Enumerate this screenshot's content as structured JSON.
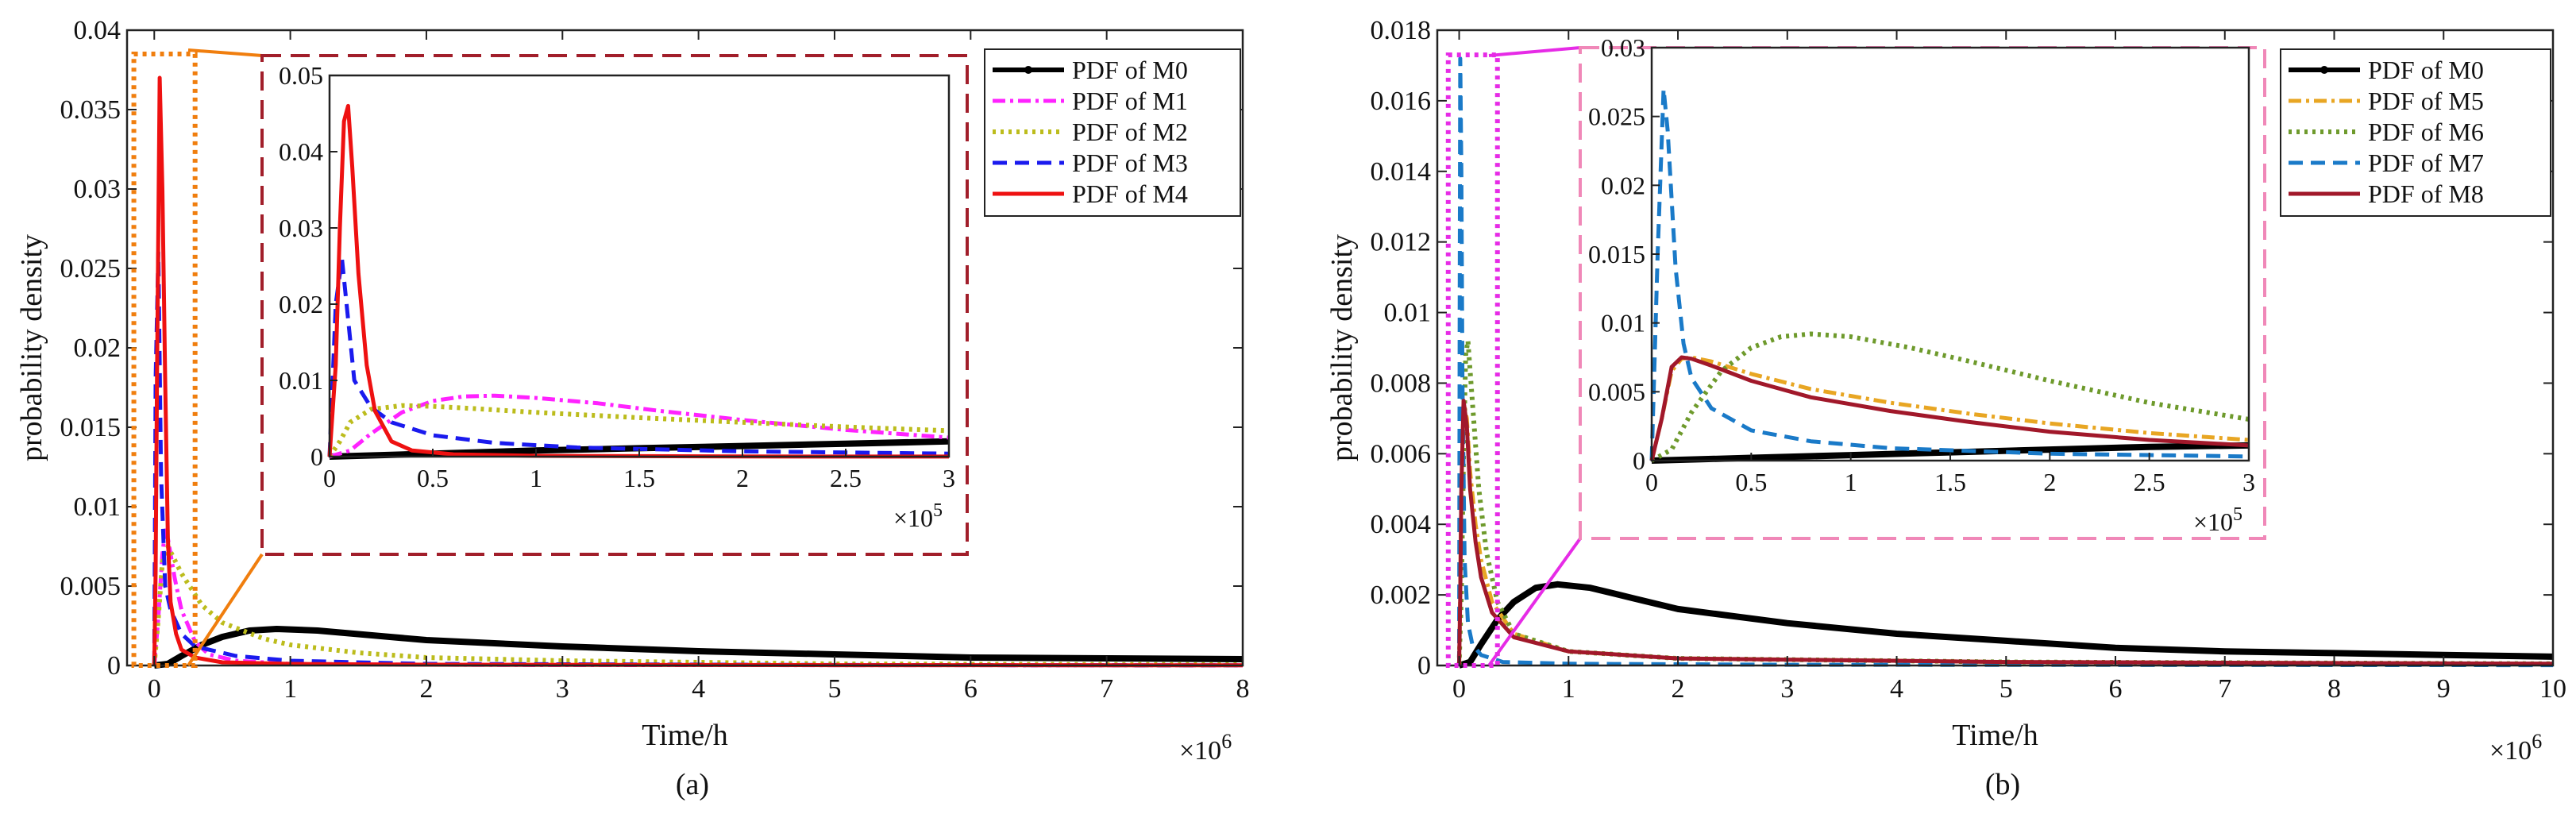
{
  "figure": {
    "panels": [
      {
        "caption": "(a)",
        "exponent_label": "×10",
        "exponent_power": "6",
        "inset_exponent_label": "×10",
        "inset_exponent_power": "5"
      },
      {
        "caption": "(b)",
        "exponent_label": "×10",
        "exponent_power": "6",
        "inset_exponent_label": "×10",
        "inset_exponent_power": "5"
      }
    ]
  },
  "chart_data": [
    {
      "type": "line",
      "panel": "a",
      "title": "",
      "xlabel": "Time/h",
      "ylabel": "probability density",
      "x_multiplier": "×10^6",
      "xlim": [
        -0.2,
        8
      ],
      "ylim": [
        0,
        0.04
      ],
      "xticks": [
        0,
        1,
        2,
        3,
        4,
        5,
        6,
        7,
        8
      ],
      "xtick_labels": [
        "0",
        "1",
        "2",
        "3",
        "4",
        "5",
        "6",
        "7",
        "8"
      ],
      "yticks": [
        0,
        0.005,
        0.01,
        0.015,
        0.02,
        0.025,
        0.03,
        0.035,
        0.04
      ],
      "ytick_labels": [
        "0",
        "0.005",
        "0.01",
        "0.015",
        "0.02",
        "0.025",
        "0.03",
        "0.035",
        "0.04"
      ],
      "legend": {
        "position": "top-right",
        "entries": [
          "PDF of M0",
          "PDF of M1",
          "PDF of M2",
          "PDF of M3",
          "PDF of M4"
        ]
      },
      "series": [
        {
          "name": "PDF of M0",
          "color": "#000000",
          "dash": "solid",
          "width": 8,
          "x": [
            0,
            0.1,
            0.2,
            0.35,
            0.5,
            0.7,
            0.9,
            1.2,
            1.6,
            2,
            3,
            4,
            5,
            6,
            7,
            8
          ],
          "y": [
            0,
            0.0001,
            0.0006,
            0.0013,
            0.0018,
            0.0022,
            0.0023,
            0.0022,
            0.0019,
            0.0016,
            0.0012,
            0.0009,
            0.0007,
            0.0005,
            0.00045,
            0.0004
          ]
        },
        {
          "name": "PDF of M1",
          "color": "#ff22ff",
          "dash": "16,6,4,6",
          "width": 5,
          "x": [
            0,
            0.03,
            0.06,
            0.08,
            0.1,
            0.15,
            0.2,
            0.3,
            0.4,
            0.6,
            1,
            2,
            3,
            5,
            8
          ],
          "y": [
            0,
            0.003,
            0.007,
            0.0085,
            0.008,
            0.0055,
            0.0035,
            0.0015,
            0.0007,
            0.0003,
            0.0001,
            5e-05,
            3e-05,
            2e-05,
            1e-05
          ]
        },
        {
          "name": "PDF of M2",
          "color": "#bcbc1c",
          "dash": "4,6",
          "width": 6,
          "x": [
            0,
            0.03,
            0.06,
            0.1,
            0.2,
            0.35,
            0.5,
            0.8,
            1,
            1.5,
            2,
            3,
            5,
            8
          ],
          "y": [
            0,
            0.003,
            0.0065,
            0.0075,
            0.0058,
            0.0038,
            0.0027,
            0.0017,
            0.0013,
            0.0008,
            0.0005,
            0.0003,
            0.0001,
            5e-05
          ]
        },
        {
          "name": "PDF of M3",
          "color": "#1a1aee",
          "dash": "18,10",
          "width": 5,
          "x": [
            0,
            0.01,
            0.03,
            0.05,
            0.08,
            0.12,
            0.2,
            0.3,
            0.6,
            1,
            2,
            5,
            8
          ],
          "y": [
            0,
            0.018,
            0.026,
            0.012,
            0.005,
            0.0035,
            0.002,
            0.0012,
            0.0006,
            0.0003,
            0.0001,
            3e-05,
            1e-05
          ]
        },
        {
          "name": "PDF of M4",
          "color": "#ee1111",
          "dash": "solid",
          "width": 5,
          "x": [
            0,
            0.01,
            0.02,
            0.04,
            0.06,
            0.08,
            0.1,
            0.12,
            0.16,
            0.2,
            0.3,
            0.5,
            1,
            2,
            5,
            8
          ],
          "y": [
            0,
            0.006,
            0.018,
            0.037,
            0.03,
            0.018,
            0.008,
            0.004,
            0.002,
            0.001,
            0.0005,
            0.0002,
            0.0001,
            5e-05,
            2e-05,
            1e-05
          ]
        }
      ],
      "zoom_box": {
        "x": [
          -0.15,
          0.3
        ],
        "y": [
          0,
          0.0385
        ]
      },
      "inset": {
        "xlim": [
          0,
          3
        ],
        "ylim": [
          0,
          0.05
        ],
        "x_multiplier": "×10^5",
        "xticks": [
          0,
          0.5,
          1,
          1.5,
          2,
          2.5,
          3
        ],
        "xtick_labels": [
          "0",
          "0.5",
          "1",
          "1.5",
          "2",
          "2.5",
          "3"
        ],
        "yticks": [
          0,
          0.01,
          0.02,
          0.03,
          0.04,
          0.05
        ],
        "ytick_labels": [
          "0",
          "0.01",
          "0.02",
          "0.03",
          "0.04",
          "0.05"
        ],
        "series": [
          {
            "name": "PDF of M0",
            "x": [
              0,
              0.25,
              0.5,
              1,
              1.5,
              2,
              2.5,
              3
            ],
            "y": [
              0,
              0.0002,
              0.0004,
              0.0008,
              0.0011,
              0.0014,
              0.0017,
              0.002
            ]
          },
          {
            "name": "PDF of M1",
            "x": [
              0,
              0.1,
              0.2,
              0.35,
              0.5,
              0.65,
              0.8,
              1,
              1.3,
              1.6,
              2,
              2.5,
              3
            ],
            "y": [
              0,
              0.0008,
              0.003,
              0.0058,
              0.0073,
              0.0079,
              0.008,
              0.0077,
              0.007,
              0.006,
              0.0048,
              0.0035,
              0.0025
            ]
          },
          {
            "name": "PDF of M2",
            "x": [
              0,
              0.05,
              0.1,
              0.2,
              0.35,
              0.5,
              0.7,
              1,
              1.5,
              2,
              2.5,
              3
            ],
            "y": [
              0,
              0.002,
              0.0045,
              0.0062,
              0.0067,
              0.0066,
              0.0063,
              0.0058,
              0.0051,
              0.0045,
              0.0039,
              0.0034
            ]
          },
          {
            "name": "PDF of M3",
            "x": [
              0,
              0.03,
              0.06,
              0.09,
              0.12,
              0.2,
              0.3,
              0.5,
              0.8,
              1.2,
              2,
              3
            ],
            "y": [
              0,
              0.02,
              0.026,
              0.018,
              0.01,
              0.0065,
              0.0045,
              0.0028,
              0.0018,
              0.0012,
              0.0007,
              0.0004
            ]
          },
          {
            "name": "PDF of M4",
            "x": [
              0,
              0.03,
              0.05,
              0.07,
              0.09,
              0.11,
              0.14,
              0.18,
              0.22,
              0.3,
              0.4,
              0.6,
              1,
              2,
              3
            ],
            "y": [
              0,
              0.012,
              0.03,
              0.044,
              0.046,
              0.038,
              0.024,
              0.012,
              0.006,
              0.002,
              0.0008,
              0.0003,
              0.0001,
              2e-05,
              1e-05
            ]
          }
        ]
      }
    },
    {
      "type": "line",
      "panel": "b",
      "title": "",
      "xlabel": "Time/h",
      "ylabel": "probability density",
      "x_multiplier": "×10^6",
      "xlim": [
        -0.2,
        10
      ],
      "ylim": [
        0,
        0.018
      ],
      "xticks": [
        0,
        1,
        2,
        3,
        4,
        5,
        6,
        7,
        8,
        9,
        10
      ],
      "xtick_labels": [
        "0",
        "1",
        "2",
        "3",
        "4",
        "5",
        "6",
        "7",
        "8",
        "9",
        "10"
      ],
      "yticks": [
        0,
        0.002,
        0.004,
        0.006,
        0.008,
        0.01,
        0.012,
        0.014,
        0.016,
        0.018
      ],
      "ytick_labels": [
        "0",
        "0.002",
        "0.004",
        "0.006",
        "0.008",
        "0.01",
        "0.012",
        "0.014",
        "0.016",
        "0.018"
      ],
      "legend": {
        "position": "top-right",
        "entries": [
          "PDF of M0",
          "PDF of M5",
          "PDF of M6",
          "PDF of M7",
          "PDF of M8"
        ]
      },
      "series": [
        {
          "name": "PDF of M0",
          "color": "#000000",
          "dash": "solid",
          "width": 8,
          "x": [
            0,
            0.1,
            0.2,
            0.35,
            0.5,
            0.7,
            0.9,
            1.2,
            1.6,
            2,
            3,
            4,
            5,
            6,
            7,
            8,
            9,
            10
          ],
          "y": [
            0,
            0.0001,
            0.0006,
            0.0013,
            0.0018,
            0.0022,
            0.0023,
            0.0022,
            0.0019,
            0.0016,
            0.0012,
            0.0009,
            0.0007,
            0.0005,
            0.0004,
            0.00035,
            0.0003,
            0.00025
          ]
        },
        {
          "name": "PDF of M5",
          "color": "#e8a623",
          "dash": "16,6,4,6",
          "width": 5,
          "x": [
            0,
            0.01,
            0.02,
            0.04,
            0.07,
            0.1,
            0.15,
            0.2,
            0.3,
            0.5,
            1,
            2,
            5,
            10
          ],
          "y": [
            0,
            0.002,
            0.005,
            0.0075,
            0.007,
            0.0055,
            0.004,
            0.003,
            0.0018,
            0.0009,
            0.0004,
            0.0002,
            0.0001,
            5e-05
          ]
        },
        {
          "name": "PDF of M6",
          "color": "#6e9a2c",
          "dash": "4,6",
          "width": 6,
          "x": [
            0,
            0.02,
            0.04,
            0.06,
            0.08,
            0.12,
            0.18,
            0.25,
            0.35,
            0.5,
            1,
            2,
            5,
            10
          ],
          "y": [
            0,
            0.002,
            0.006,
            0.0088,
            0.0092,
            0.0075,
            0.005,
            0.0032,
            0.0018,
            0.0009,
            0.0004,
            0.0002,
            0.0001,
            5e-05
          ]
        },
        {
          "name": "PDF of M7",
          "color": "#1a7ac8",
          "dash": "18,10",
          "width": 5,
          "x": [
            0,
            0.005,
            0.01,
            0.02,
            0.03,
            0.05,
            0.08,
            0.12,
            0.2,
            0.4,
            1,
            3,
            10
          ],
          "y": [
            0,
            0.01,
            0.0172,
            0.014,
            0.008,
            0.003,
            0.0012,
            0.0006,
            0.0003,
            0.0001,
            5e-05,
            2e-05,
            1e-05
          ]
        },
        {
          "name": "PDF of M8",
          "color": "#a1182a",
          "dash": "solid",
          "width": 5,
          "x": [
            0,
            0.01,
            0.02,
            0.04,
            0.07,
            0.1,
            0.15,
            0.2,
            0.3,
            0.5,
            1,
            2,
            5,
            10
          ],
          "y": [
            0,
            0.002,
            0.005,
            0.0075,
            0.0068,
            0.005,
            0.0035,
            0.0025,
            0.0015,
            0.0008,
            0.0004,
            0.0002,
            0.0001,
            5e-05
          ]
        }
      ],
      "zoom_box": {
        "x": [
          -0.1,
          0.35
        ],
        "y": [
          0,
          0.0173
        ]
      },
      "inset": {
        "xlim": [
          0,
          3
        ],
        "ylim": [
          0,
          0.03
        ],
        "x_multiplier": "×10^5",
        "xticks": [
          0,
          0.5,
          1,
          1.5,
          2,
          2.5,
          3
        ],
        "xtick_labels": [
          "0",
          "0.5",
          "1",
          "1.5",
          "2",
          "2.5",
          "3"
        ],
        "yticks": [
          0,
          0.005,
          0.01,
          0.015,
          0.02,
          0.025,
          0.03
        ],
        "ytick_labels": [
          "0",
          "0.005",
          "0.01",
          "0.015",
          "0.02",
          "0.025",
          "0.03"
        ],
        "series": [
          {
            "name": "PDF of M0",
            "x": [
              0,
              0.25,
              0.5,
              1,
              1.5,
              2,
              2.5,
              3
            ],
            "y": [
              0,
              0.0001,
              0.0002,
              0.0004,
              0.0006,
              0.0008,
              0.001,
              0.0011
            ]
          },
          {
            "name": "PDF of M5",
            "x": [
              0,
              0.05,
              0.1,
              0.15,
              0.2,
              0.3,
              0.5,
              0.8,
              1.2,
              1.6,
              2,
              2.5,
              3
            ],
            "y": [
              0,
              0.003,
              0.0065,
              0.0074,
              0.0075,
              0.0072,
              0.0063,
              0.0052,
              0.0042,
              0.0034,
              0.0027,
              0.002,
              0.0015
            ]
          },
          {
            "name": "PDF of M6",
            "x": [
              0,
              0.1,
              0.2,
              0.35,
              0.5,
              0.65,
              0.8,
              1,
              1.3,
              1.6,
              2,
              2.5,
              3
            ],
            "y": [
              0,
              0.0008,
              0.0035,
              0.0065,
              0.0082,
              0.009,
              0.0092,
              0.009,
              0.0082,
              0.0072,
              0.0058,
              0.0042,
              0.003
            ]
          },
          {
            "name": "PDF of M7",
            "x": [
              0,
              0.03,
              0.06,
              0.08,
              0.1,
              0.12,
              0.16,
              0.2,
              0.3,
              0.5,
              0.8,
              1.2,
              2,
              3
            ],
            "y": [
              0,
              0.015,
              0.027,
              0.024,
              0.019,
              0.014,
              0.0085,
              0.006,
              0.0038,
              0.0022,
              0.0014,
              0.0009,
              0.0005,
              0.0003
            ]
          },
          {
            "name": "PDF of M8",
            "x": [
              0,
              0.05,
              0.1,
              0.15,
              0.2,
              0.3,
              0.5,
              0.8,
              1.2,
              1.6,
              2,
              2.5,
              3
            ],
            "y": [
              0,
              0.003,
              0.0068,
              0.0075,
              0.0074,
              0.0069,
              0.0058,
              0.0046,
              0.0036,
              0.0028,
              0.0021,
              0.0015,
              0.0011
            ]
          }
        ]
      }
    }
  ]
}
